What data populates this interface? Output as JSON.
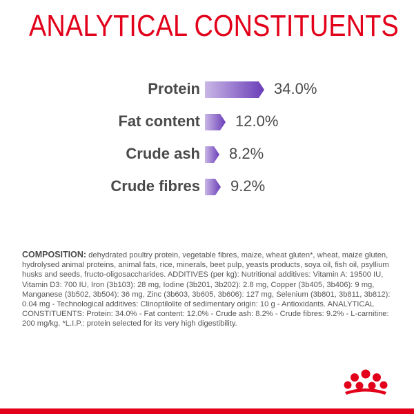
{
  "title": "ANALYTICAL CONSTITUENTS",
  "chart_data": {
    "type": "bar",
    "title": "ANALYTICAL CONSTITUENTS",
    "unit": "%",
    "categories": [
      "Protein",
      "Fat content",
      "Crude ash",
      "Crude fibres"
    ],
    "values": [
      34.0,
      12.0,
      8.2,
      9.2
    ],
    "value_labels": [
      "34.0%",
      "12.0%",
      "8.2%",
      "9.2%"
    ],
    "colors": {
      "bar_start": "#c9b7e6",
      "bar_end": "#6a3db8",
      "label": "#4a4a4a"
    }
  },
  "composition": {
    "lead": "COMPOSITION:",
    "text": " dehydrated poultry protein, vegetable fibres, maize, wheat gluten*, wheat, maize gluten, hydrolysed animal proteins, animal fats, rice, minerals, beet pulp, yeasts products, soya oil, fish oil, psyllium husks and seeds, fructo-oligosaccharides. ADDITIVES (per kg): Nutritional additives: Vitamin A: 19500 IU, Vitamin D3: 700 IU, Iron (3b103): 28 mg, Iodine (3b201, 3b202): 2.8 mg, Copper (3b405, 3b406): 9 mg, Manganese (3b502, 3b504): 36 mg, Zinc (3b603, 3b605, 3b606): 127 mg, Selenium (3b801, 3b811, 3b812): 0.04 mg - Technological additives: Clinoptilolite of sedimentary origin: 10 g - Antioxidants. ANALYTICAL CONSTITUENTS: Protein: 34.0% - Fat content: 12.0% - Crude ash: 8.2% - Crude fibres: 9.2% - L-carnitine: 200 mg/kg. *L.I.P.: protein selected for its very high digestibility."
  },
  "brand_color": "#e2001a"
}
